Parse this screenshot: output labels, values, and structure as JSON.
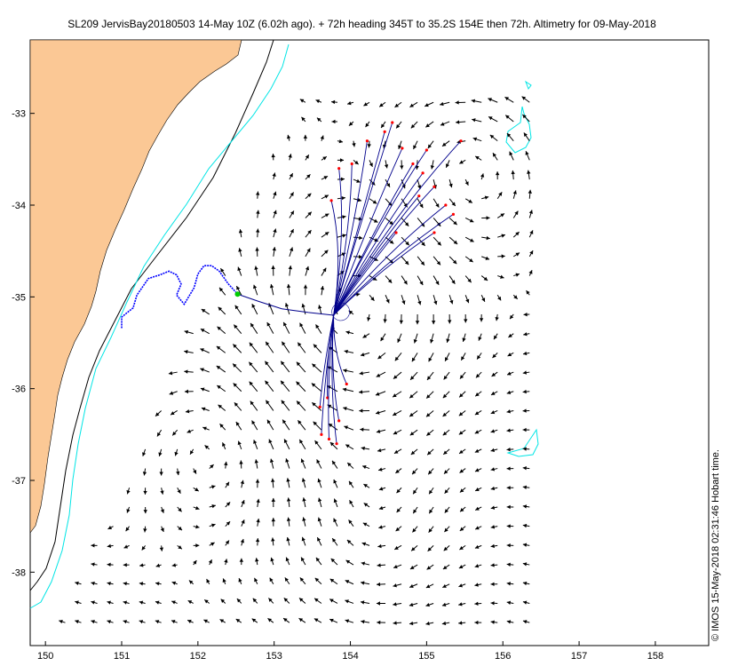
{
  "title": "SL209 JervisBay20180503 14-May 10Z (6.02h ago). + 72h heading 345T to 35.2S 154E then 72h. Altimetry for 09-May-2018",
  "credit": "© IMOS 15-May-2018 02:31:46 Hobart time.",
  "axes": {
    "x_ticks": [
      "150",
      "151",
      "152",
      "153",
      "154",
      "155",
      "156",
      "157",
      "158"
    ],
    "y_ticks": [
      "-33",
      "-34",
      "-35",
      "-36",
      "-37",
      "-38"
    ],
    "xlim": [
      149.8,
      158.7
    ],
    "ylim": [
      -38.8,
      -32.2
    ]
  },
  "colors": {
    "land": "#fbc895",
    "contour_cyan": "#00e5e5",
    "track": "#0000ff",
    "forecast": "#00008b",
    "endpoint": "#ff0000",
    "current_position": "#00cc00",
    "arrow": "#000000"
  },
  "map_data": {
    "glider_track": [
      [
        151.0,
        -35.34
      ],
      [
        151.0,
        -35.22
      ],
      [
        151.15,
        -35.12
      ],
      [
        151.2,
        -34.98
      ],
      [
        151.35,
        -34.8
      ],
      [
        151.5,
        -34.76
      ],
      [
        151.62,
        -34.72
      ],
      [
        151.72,
        -34.76
      ],
      [
        151.78,
        -34.86
      ],
      [
        151.72,
        -34.98
      ],
      [
        151.82,
        -35.08
      ],
      [
        151.95,
        -34.9
      ],
      [
        152.0,
        -34.75
      ],
      [
        152.08,
        -34.66
      ],
      [
        152.18,
        -34.66
      ],
      [
        152.28,
        -34.72
      ],
      [
        152.4,
        -34.86
      ],
      [
        152.5,
        -34.95
      ]
    ],
    "current_position": [
      152.52,
      -34.97
    ],
    "planned_track": [
      [
        152.52,
        -34.97
      ],
      [
        152.8,
        -35.05
      ],
      [
        153.1,
        -35.13
      ],
      [
        153.45,
        -35.17
      ],
      [
        153.78,
        -35.2
      ]
    ],
    "forecast_start": [
      153.78,
      -35.2
    ],
    "forecast_ends": [
      [
        153.75,
        -33.95
      ],
      [
        153.85,
        -33.6
      ],
      [
        154.02,
        -33.55
      ],
      [
        154.22,
        -33.3
      ],
      [
        154.45,
        -33.2
      ],
      [
        154.55,
        -33.1
      ],
      [
        154.68,
        -33.38
      ],
      [
        154.82,
        -33.55
      ],
      [
        154.95,
        -33.65
      ],
      [
        155.1,
        -33.8
      ],
      [
        155.25,
        -34.0
      ],
      [
        155.1,
        -34.3
      ],
      [
        155.35,
        -34.1
      ],
      [
        155.45,
        -33.3
      ],
      [
        155.0,
        -33.4
      ],
      [
        154.9,
        -33.9
      ],
      [
        154.6,
        -34.3
      ],
      [
        153.7,
        -36.1
      ],
      [
        153.95,
        -35.95
      ],
      [
        153.62,
        -36.5
      ],
      [
        153.72,
        -36.55
      ],
      [
        153.85,
        -36.35
      ],
      [
        153.6,
        -36.2
      ],
      [
        153.82,
        -36.6
      ]
    ]
  }
}
